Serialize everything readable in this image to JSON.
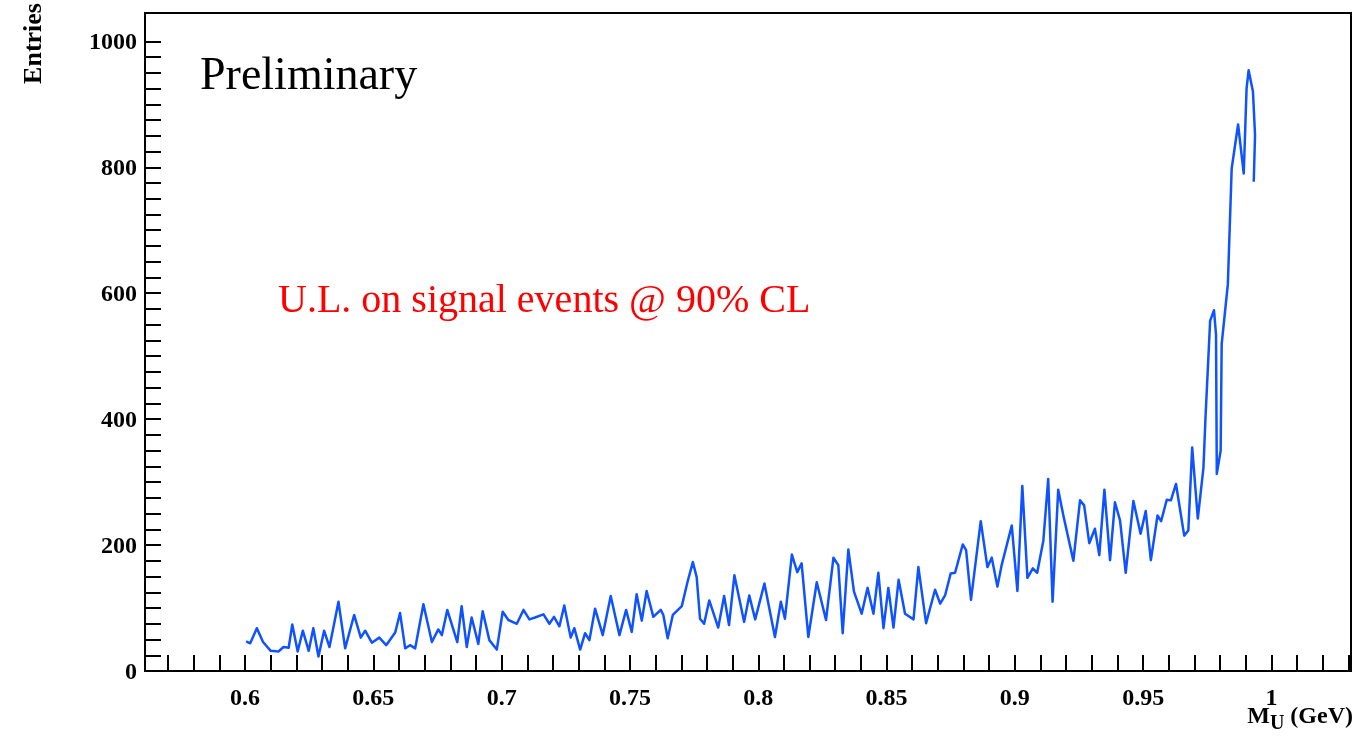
{
  "chart_data": {
    "type": "line",
    "xlabel": "M$_{U}$ (GeV)",
    "ylabel": "Entries",
    "annotations": [
      "Preliminary",
      "U.L. on signal events @ 90% CL"
    ],
    "xlim": [
      0.561,
      1.031
    ],
    "ylim": [
      0,
      1045
    ],
    "xticks": [
      {
        "value": 0.57,
        "label": null
      },
      {
        "value": 0.58,
        "label": null
      },
      {
        "value": 0.59,
        "label": null
      },
      0.6,
      {
        "value": 0.61,
        "label": null
      },
      {
        "value": 0.62,
        "label": null
      },
      {
        "value": 0.63,
        "label": null
      },
      {
        "value": 0.64,
        "label": null
      },
      0.65,
      {
        "value": 0.66,
        "label": null
      },
      {
        "value": 0.67,
        "label": null
      },
      {
        "value": 0.68,
        "label": null
      },
      {
        "value": 0.69,
        "label": null
      },
      0.7,
      {
        "value": 0.71,
        "label": null
      },
      {
        "value": 0.72,
        "label": null
      },
      {
        "value": 0.73,
        "label": null
      },
      {
        "value": 0.74,
        "label": null
      },
      0.75,
      {
        "value": 0.76,
        "label": null
      },
      {
        "value": 0.77,
        "label": null
      },
      {
        "value": 0.78,
        "label": null
      },
      {
        "value": 0.79,
        "label": null
      },
      0.8,
      {
        "value": 0.81,
        "label": null
      },
      {
        "value": 0.82,
        "label": null
      },
      {
        "value": 0.83,
        "label": null
      },
      {
        "value": 0.84,
        "label": null
      },
      0.85,
      {
        "value": 0.86,
        "label": null
      },
      {
        "value": 0.87,
        "label": null
      },
      {
        "value": 0.88,
        "label": null
      },
      {
        "value": 0.89,
        "label": null
      },
      0.9,
      {
        "value": 0.91,
        "label": null
      },
      {
        "value": 0.92,
        "label": null
      },
      {
        "value": 0.93,
        "label": null
      },
      {
        "value": 0.94,
        "label": null
      },
      0.95,
      {
        "value": 0.96,
        "label": null
      },
      {
        "value": 0.97,
        "label": null
      },
      {
        "value": 0.98,
        "label": null
      },
      {
        "value": 0.99,
        "label": null
      },
      1,
      {
        "value": 1.01,
        "label": null
      },
      {
        "value": 1.02,
        "label": null
      },
      {
        "value": 1.03,
        "label": null
      }
    ],
    "yticks": [
      0,
      {
        "value": 25,
        "label": null
      },
      {
        "value": 50,
        "label": null
      },
      {
        "value": 75,
        "label": null
      },
      {
        "value": 100,
        "label": null
      },
      {
        "value": 125,
        "label": null
      },
      {
        "value": 150,
        "label": null
      },
      {
        "value": 175,
        "label": null
      },
      200,
      {
        "value": 225,
        "label": null
      },
      {
        "value": 250,
        "label": null
      },
      {
        "value": 275,
        "label": null
      },
      {
        "value": 300,
        "label": null
      },
      {
        "value": 325,
        "label": null
      },
      {
        "value": 350,
        "label": null
      },
      {
        "value": 375,
        "label": null
      },
      400,
      {
        "value": 425,
        "label": null
      },
      {
        "value": 450,
        "label": null
      },
      {
        "value": 475,
        "label": null
      },
      {
        "value": 500,
        "label": null
      },
      {
        "value": 525,
        "label": null
      },
      {
        "value": 550,
        "label": null
      },
      {
        "value": 575,
        "label": null
      },
      600,
      {
        "value": 625,
        "label": null
      },
      {
        "value": 650,
        "label": null
      },
      {
        "value": 675,
        "label": null
      },
      {
        "value": 700,
        "label": null
      },
      {
        "value": 725,
        "label": null
      },
      {
        "value": 750,
        "label": null
      },
      {
        "value": 775,
        "label": null
      },
      800,
      {
        "value": 825,
        "label": null
      },
      {
        "value": 850,
        "label": null
      },
      {
        "value": 875,
        "label": null
      },
      {
        "value": 900,
        "label": null
      },
      {
        "value": 925,
        "label": null
      },
      {
        "value": 950,
        "label": null
      },
      {
        "value": 975,
        "label": null
      },
      1000
    ],
    "grid": false,
    "marker": "none",
    "line_style": "solid",
    "series": [
      {
        "color": "#0f52ff",
        "x": [
          0.6004,
          0.602,
          0.6046,
          0.607,
          0.61,
          0.613,
          0.615,
          0.617,
          0.6184,
          0.6205,
          0.6225,
          0.6248,
          0.6266,
          0.6286,
          0.6308,
          0.6329,
          0.6364,
          0.639,
          0.6425,
          0.6451,
          0.6468,
          0.6494,
          0.6523,
          0.655,
          0.6585,
          0.6604,
          0.6624,
          0.6643,
          0.6663,
          0.6695,
          0.6728,
          0.6753,
          0.6767,
          0.6788,
          0.6827,
          0.6844,
          0.6864,
          0.6883,
          0.6909,
          0.6926,
          0.6952,
          0.6981,
          0.7004,
          0.7026,
          0.7059,
          0.7085,
          0.7108,
          0.713,
          0.7163,
          0.7186,
          0.7204,
          0.7225,
          0.7244,
          0.7269,
          0.7283,
          0.7306,
          0.7325,
          0.7342,
          0.7364,
          0.7394,
          0.7425,
          0.7459,
          0.7485,
          0.7507,
          0.7526,
          0.7546,
          0.7565,
          0.7591,
          0.762,
          0.763,
          0.7647,
          0.7667,
          0.7702,
          0.7724,
          0.7745,
          0.776,
          0.7773,
          0.7789,
          0.7809,
          0.7844,
          0.7867,
          0.7886,
          0.7907,
          0.7945,
          0.7965,
          0.7988,
          0.8024,
          0.8065,
          0.8088,
          0.8104,
          0.8131,
          0.8152,
          0.8169,
          0.8195,
          0.8228,
          0.8264,
          0.8293,
          0.8312,
          0.8329,
          0.8351,
          0.8373,
          0.8403,
          0.8426,
          0.8449,
          0.8468,
          0.8488,
          0.8507,
          0.8527,
          0.8547,
          0.8572,
          0.8605,
          0.8624,
          0.8654,
          0.8689,
          0.8709,
          0.8728,
          0.875,
          0.8767,
          0.8797,
          0.881,
          0.8829,
          0.8867,
          0.8893,
          0.891,
          0.8932,
          0.8949,
          0.8988,
          0.901,
          0.9029,
          0.9049,
          0.907,
          0.9087,
          0.9111,
          0.913,
          0.9147,
          0.9169,
          0.9189,
          0.9228,
          0.9254,
          0.927,
          0.929,
          0.9312,
          0.9329,
          0.9349,
          0.9371,
          0.939,
          0.941,
          0.9432,
          0.9462,
          0.949,
          0.951,
          0.953,
          0.9556,
          0.957,
          0.9592,
          0.9608,
          0.9628,
          0.966,
          0.9676,
          0.9691,
          0.9713,
          0.9735,
          0.9743,
          0.9761,
          0.9776,
          0.9784,
          0.9787,
          0.9802,
          0.9806,
          0.983,
          0.9845,
          0.987,
          0.9892,
          0.9903,
          0.9911,
          0.9928,
          0.9936,
          0.9931
        ],
        "values": [
          47,
          44,
          68,
          46,
          32,
          31,
          38,
          37,
          74,
          31,
          64,
          32,
          68,
          23,
          64,
          38,
          110,
          36,
          89,
          53,
          64,
          45,
          53,
          41,
          61,
          92,
          36,
          41,
          36,
          106,
          46,
          66,
          57,
          97,
          46,
          103,
          38,
          85,
          43,
          95,
          49,
          34,
          94,
          81,
          75,
          97,
          82,
          85,
          90,
          75,
          86,
          71,
          104,
          53,
          68,
          34,
          60,
          49,
          99,
          57,
          119,
          57,
          97,
          62,
          122,
          80,
          127,
          86,
          97,
          89,
          52,
          89,
          103,
          141,
          173,
          149,
          83,
          75,
          112,
          69,
          119,
          73,
          152,
          78,
          120,
          82,
          139,
          54,
          110,
          83,
          185,
          157,
          171,
          54,
          141,
          81,
          180,
          168,
          60,
          193,
          126,
          91,
          132,
          91,
          156,
          68,
          132,
          69,
          145,
          91,
          82,
          165,
          76,
          129,
          107,
          120,
          155,
          156,
          201,
          192,
          113,
          238,
          165,
          180,
          134,
          169,
          231,
          127,
          294,
          148,
          163,
          156,
          207,
          305,
          110,
          288,
          247,
          175,
          271,
          263,
          203,
          226,
          184,
          288,
          176,
          268,
          239,
          156,
          270,
          218,
          254,
          176,
          247,
          238,
          272,
          271,
          297,
          215,
          223,
          355,
          242,
          323,
          403,
          556,
          573,
          534,
          313,
          350,
          519,
          614,
          798,
          868,
          790,
          925,
          954,
          920,
          851,
          777
        ]
      }
    ]
  }
}
